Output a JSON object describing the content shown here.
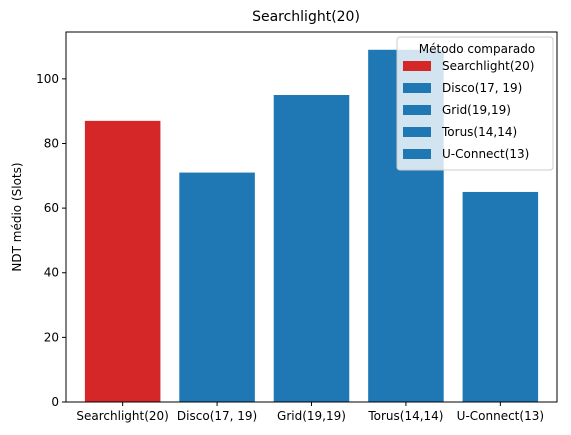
{
  "chart_data": {
    "type": "bar",
    "title": "Searchlight(20)",
    "xlabel": "",
    "ylabel": "NDT médio (Slots)",
    "categories": [
      "Searchlight(20)",
      "Disco(17, 19)",
      "Grid(19,19)",
      "Torus(14,14)",
      "U-Connect(13)"
    ],
    "values": [
      87,
      71,
      95,
      109,
      65
    ],
    "colors": [
      "#d62728",
      "#1f77b4",
      "#1f77b4",
      "#1f77b4",
      "#1f77b4"
    ],
    "ylim": [
      0,
      114.5
    ],
    "yticks": [
      0,
      20,
      40,
      60,
      80,
      100
    ],
    "grid": false,
    "legend": {
      "title": "Método comparado",
      "placement": "top-right",
      "entries": [
        "Searchlight(20)",
        "Disco(17, 19)",
        "Grid(19,19)",
        "Torus(14,14)",
        "U-Connect(13)"
      ]
    }
  }
}
